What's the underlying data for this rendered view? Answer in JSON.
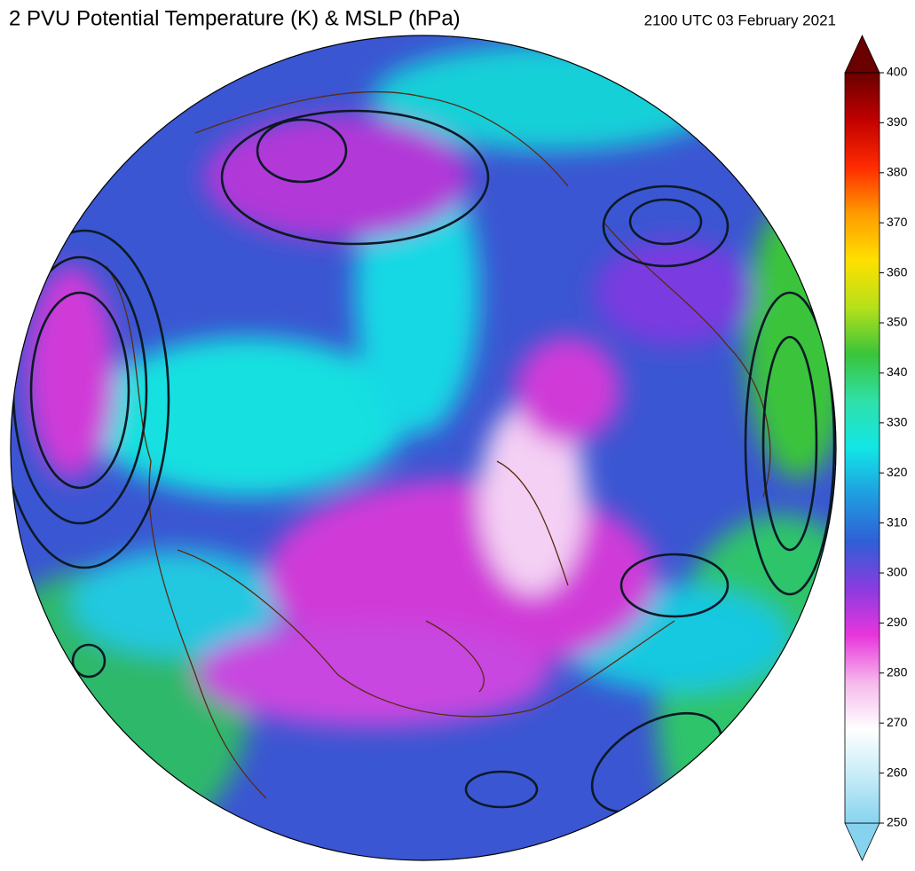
{
  "header": {
    "title": "2 PVU Potential Temperature (K) & MSLP (hPa)",
    "timestamp": "2100 UTC 03 February 2021"
  },
  "colorbar": {
    "lim": [
      250,
      400
    ],
    "ticks": [
      250,
      260,
      270,
      280,
      290,
      300,
      310,
      320,
      330,
      340,
      350,
      360,
      370,
      380,
      390,
      400
    ],
    "colors": [
      "#87d3ef",
      "#c6ecf7",
      "#ffffff",
      "#f6b8ec",
      "#e836dc",
      "#8a3be0",
      "#2f5fd6",
      "#1f9de0",
      "#12e6e6",
      "#2fe0a8",
      "#3ac43a",
      "#b6e01a",
      "#ffe000",
      "#ff9a00",
      "#ff2a00",
      "#c00000",
      "#6a0000"
    ]
  }
}
